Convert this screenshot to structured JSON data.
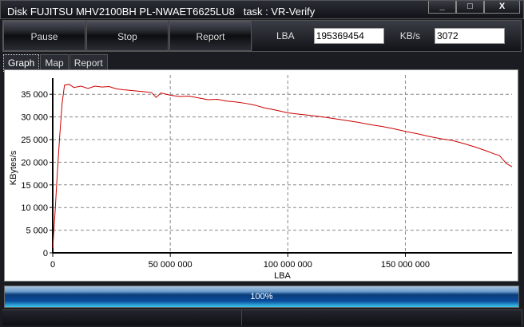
{
  "window": {
    "title": "Disk FUJITSU MHV2100BH PL-NWAET6625LU8   task : VR-Verify",
    "minimize": "_",
    "maximize": "□",
    "close": "X"
  },
  "toolbar": {
    "pause": "Pause",
    "stop": "Stop",
    "report": "Report",
    "lba_label": "LBA",
    "lba_value": "195369454",
    "kbs_label": "KB/s",
    "kbs_value": "3072"
  },
  "tabs": [
    {
      "label": "Graph",
      "active": true
    },
    {
      "label": "Map"
    },
    {
      "label": "Report"
    }
  ],
  "progress": {
    "value": 100,
    "label": "100%"
  },
  "colors": {
    "line": "#cc0000",
    "progress": "#0a4a9a"
  },
  "chart_data": {
    "type": "line",
    "xlabel": "LBA",
    "ylabel": "KBytes/s",
    "xlim": [
      0,
      195369454
    ],
    "ylim": [
      0,
      37500
    ],
    "grid": true,
    "xticks": [
      0,
      50000000,
      100000000,
      150000000
    ],
    "xtick_labels": [
      "0",
      "50 000 000",
      "100 000 000",
      "150 000 000"
    ],
    "yticks": [
      0,
      5000,
      10000,
      15000,
      20000,
      25000,
      30000,
      35000
    ],
    "ytick_labels": [
      "0",
      "5 000",
      "10 000",
      "15 000",
      "20 000",
      "25 000",
      "30 000",
      "35 000"
    ],
    "series": [
      {
        "x": [
          0,
          1,
          2,
          3,
          4,
          5,
          7,
          9,
          12,
          15,
          18,
          21,
          24,
          27,
          30,
          34,
          38,
          42,
          44,
          46,
          50,
          54,
          58,
          62,
          66,
          70,
          74,
          78,
          82,
          86,
          90,
          95,
          100,
          105,
          110,
          115,
          120,
          125,
          130,
          135,
          140,
          145,
          150,
          155,
          160,
          165,
          170,
          175,
          180,
          185,
          188,
          190,
          193,
          195.37
        ],
        "y": [
          1000,
          9000,
          18000,
          26000,
          33000,
          37000,
          37200,
          36500,
          36800,
          36300,
          36800,
          36600,
          36700,
          36200,
          36000,
          35800,
          35600,
          35400,
          34300,
          35300,
          34800,
          34500,
          34600,
          34200,
          33800,
          33900,
          33500,
          33300,
          33000,
          32600,
          32000,
          31500,
          30900,
          30600,
          30300,
          30000,
          29600,
          29200,
          28800,
          28300,
          27900,
          27400,
          26800,
          26300,
          25700,
          25200,
          24800,
          24100,
          23300,
          22400,
          21800,
          21500,
          19700,
          19000
        ]
      }
    ]
  }
}
